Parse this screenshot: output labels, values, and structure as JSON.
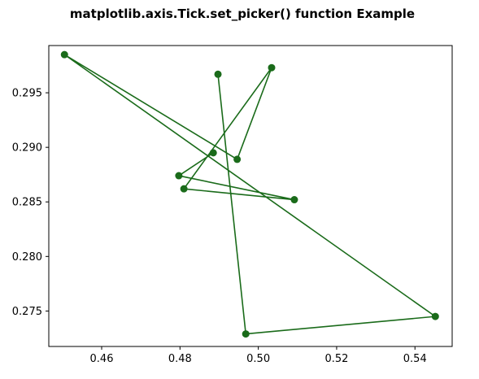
{
  "chart_data": {
    "type": "line",
    "title": "matplotlib.axis.Tick.set_picker() function Example",
    "xlabel": "",
    "ylabel": "",
    "xlim": [
      0.4465,
      0.5495
    ],
    "ylim": [
      0.27175,
      0.29933
    ],
    "grid": false,
    "legend": "none",
    "line_color": "#1a6b1a",
    "marker": "circle",
    "xticks": [
      0.46,
      0.48,
      0.5,
      0.52,
      0.54
    ],
    "xtick_labels": [
      "0.46",
      "0.48",
      "0.50",
      "0.52",
      "0.54"
    ],
    "yticks": [
      0.275,
      0.28,
      0.285,
      0.29,
      0.295
    ],
    "ytick_labels": [
      "0.275",
      "0.280",
      "0.285",
      "0.290",
      "0.295"
    ],
    "series": [
      {
        "x": [
          0.4897,
          0.4968,
          0.5452,
          0.4505,
          0.4946,
          0.5034,
          0.481,
          0.5092,
          0.4797,
          0.4885
        ],
        "y": [
          0.2967,
          0.2729,
          0.2745,
          0.2985,
          0.2889,
          0.2973,
          0.2862,
          0.2852,
          0.2874,
          0.2895
        ]
      }
    ]
  }
}
